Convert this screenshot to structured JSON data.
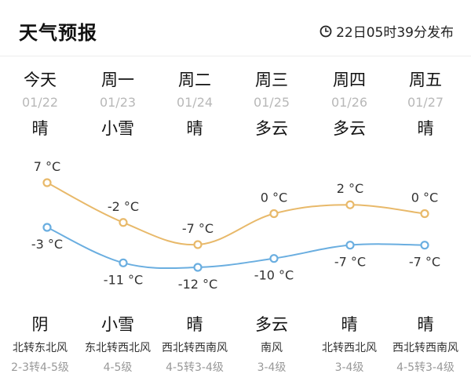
{
  "header": {
    "title": "天气预报",
    "publish_time": "22日05时39分发布"
  },
  "colors": {
    "high_line": "#e8b96a",
    "low_line": "#6aaee0"
  },
  "days": [
    {
      "day": "今天",
      "date": "01/22",
      "weather_day": "晴",
      "weather_night": "阴",
      "wind": "北转东北风",
      "wind_level": "2-3转4-5级",
      "high": 7,
      "low": -3
    },
    {
      "day": "周一",
      "date": "01/23",
      "weather_day": "小雪",
      "weather_night": "小雪",
      "wind": "东北转西北风",
      "wind_level": "4-5级",
      "high": -2,
      "low": -11
    },
    {
      "day": "周二",
      "date": "01/24",
      "weather_day": "晴",
      "weather_night": "晴",
      "wind": "西北转西南风",
      "wind_level": "4-5转3-4级",
      "high": -7,
      "low": -12
    },
    {
      "day": "周三",
      "date": "01/25",
      "weather_day": "多云",
      "weather_night": "多云",
      "wind": "南风",
      "wind_level": "3-4级",
      "high": 0,
      "low": -10
    },
    {
      "day": "周四",
      "date": "01/26",
      "weather_day": "多云",
      "weather_night": "晴",
      "wind": "北转西北风",
      "wind_level": "3-4级",
      "high": 2,
      "low": -7
    },
    {
      "day": "周五",
      "date": "01/27",
      "weather_day": "晴",
      "weather_night": "晴",
      "wind": "西北转西南风",
      "wind_level": "4-5转3-4级",
      "high": 0,
      "low": -7
    }
  ],
  "temp_labels": {
    "high": [
      "7 °C",
      "-2 °C",
      "-7 °C",
      "0 °C",
      "2 °C",
      "0 °C"
    ],
    "low": [
      "-3 °C",
      "-11 °C",
      "-12 °C",
      "-10 °C",
      "-7 °C",
      "-7 °C"
    ]
  }
}
